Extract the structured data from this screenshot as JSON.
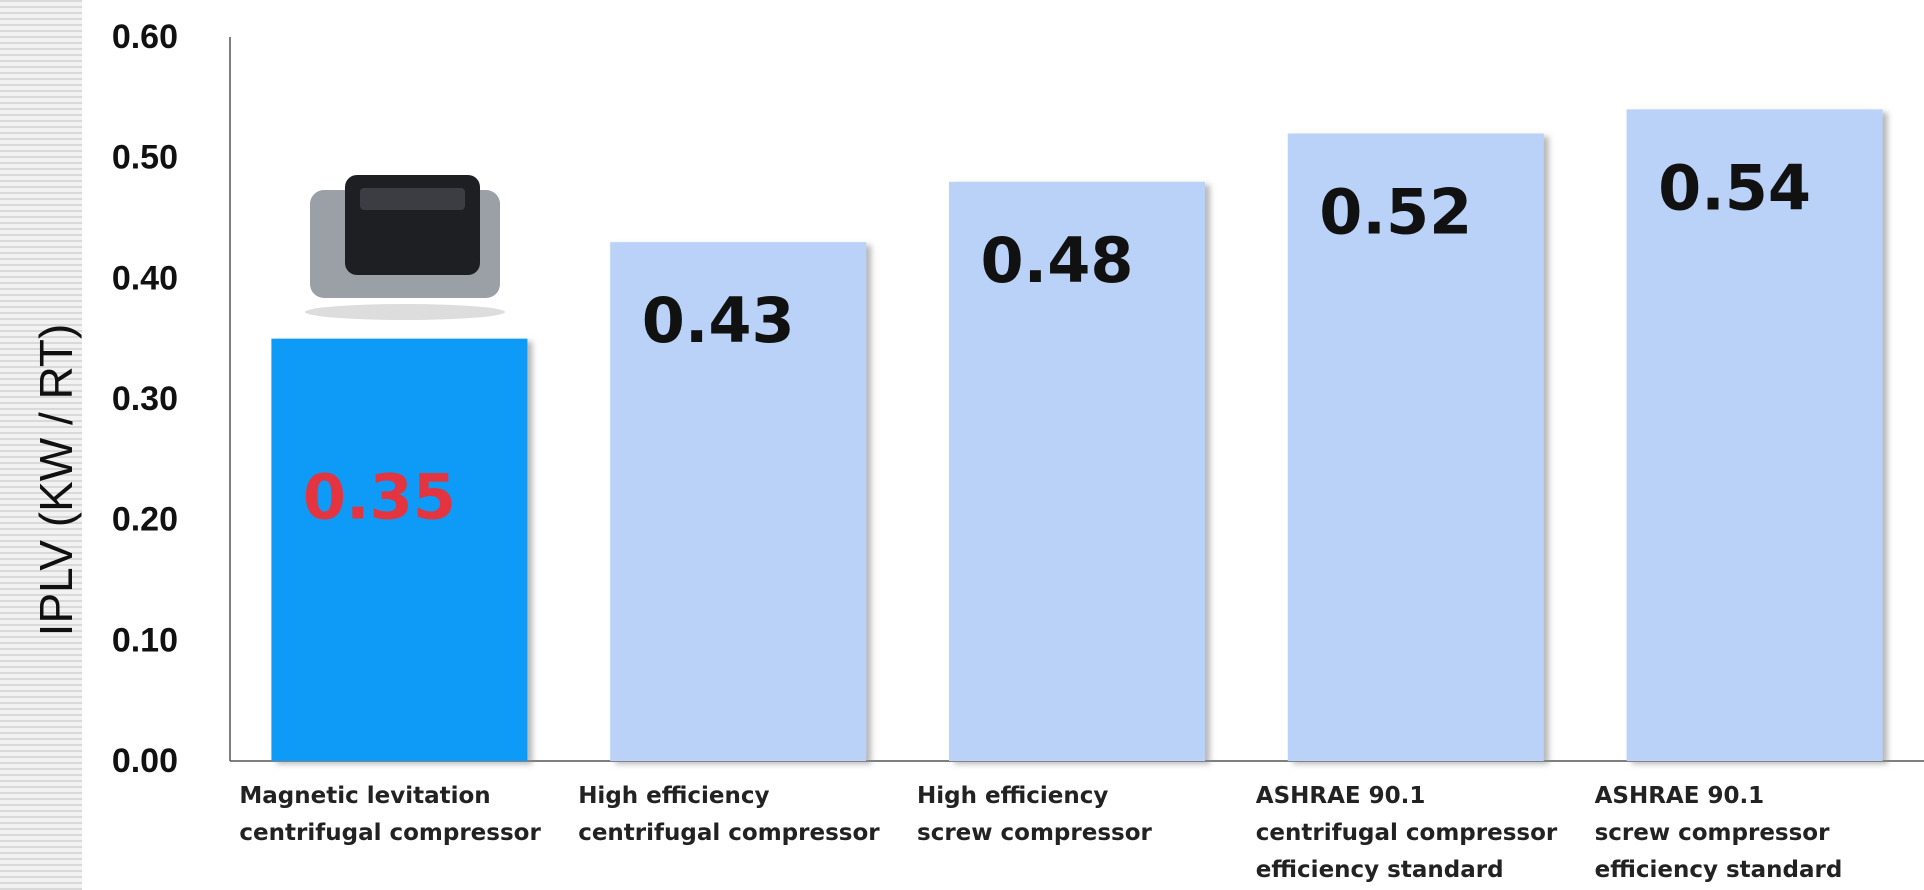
{
  "chart_data": {
    "type": "bar",
    "y_label": "IPLV (KW / RT)",
    "categories": [
      "Magnetic levitation\ncentrifugal compressor",
      "High efficiency\ncentrifugal compressor",
      "High efficiency\nscrew compressor",
      "ASHRAE 90.1\ncentrifugal compressor\nefficiency standard",
      "ASHRAE 90.1\nscrew compressor\nefficiency standard"
    ],
    "values": [
      0.35,
      0.43,
      0.48,
      0.52,
      0.54
    ],
    "colors": [
      "#0a9bf7",
      "#bad1f8",
      "#bad1f8",
      "#bad1f8",
      "#bad1f8"
    ],
    "label_colors": [
      "#e3343f",
      "#111111",
      "#111111",
      "#111111",
      "#111111"
    ],
    "ylim": [
      0,
      0.6
    ],
    "yticks": [
      {
        "value": 0,
        "label": "0.00"
      },
      {
        "value": 0.1,
        "label": "0.10"
      },
      {
        "value": 0.2,
        "label": "0.20"
      },
      {
        "value": 0.3,
        "label": "0.30"
      },
      {
        "value": 0.4,
        "label": "0.40"
      },
      {
        "value": 0.5,
        "label": "0.50"
      },
      {
        "value": 0.6,
        "label": "0.60"
      }
    ],
    "grid": false
  }
}
